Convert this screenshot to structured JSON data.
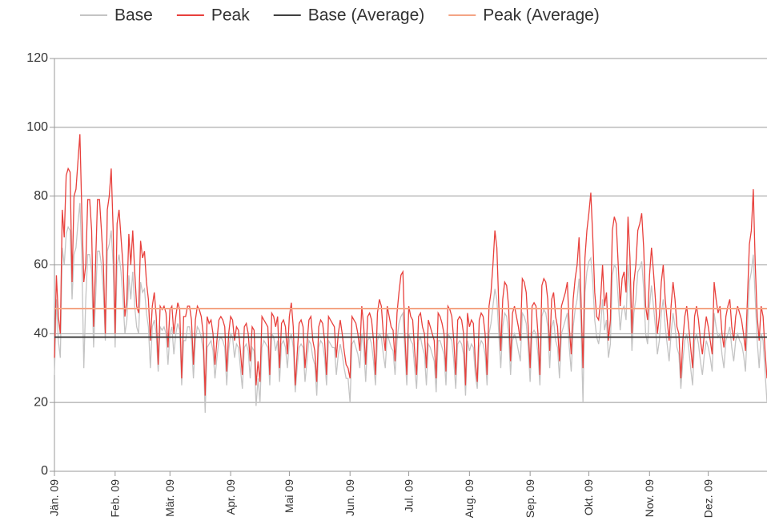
{
  "chart_data": {
    "type": "line",
    "categories": [
      "Jän. 09",
      "Feb. 09",
      "Mär. 09",
      "Apr. 09",
      "Mai 09",
      "Jun. 09",
      "Jul. 09",
      "Aug. 09",
      "Sep. 09",
      "Okt. 09",
      "Nov. 09",
      "Dez. 09"
    ],
    "ylim": [
      0,
      120
    ],
    "yticks": [
      0,
      20,
      40,
      60,
      80,
      100,
      120
    ],
    "grid": true,
    "legend": "top",
    "series": [
      {
        "name": "Base",
        "color": "#c4c4c4",
        "values": [
          [
            28,
            50,
            38,
            33,
            65,
            60,
            69,
            71,
            70,
            50,
            63,
            65,
            72,
            78,
            62,
            30,
            50,
            63,
            63,
            58,
            36,
            50,
            64,
            64,
            60,
            52,
            38,
            64,
            66,
            70,
            60
          ],
          [
            36,
            60,
            63,
            58,
            50,
            40,
            44,
            57,
            50,
            58,
            48,
            42,
            40,
            55,
            52,
            53,
            46,
            42,
            30,
            42,
            44,
            40,
            29,
            42,
            41,
            42,
            40,
            31
          ],
          [
            40,
            42,
            34,
            40,
            43,
            41,
            25,
            38,
            38,
            42,
            42,
            38,
            27,
            38,
            42,
            41,
            39,
            35,
            17,
            36,
            37,
            38,
            35,
            27,
            33,
            38,
            39,
            38,
            36,
            25,
            35
          ],
          [
            40,
            39,
            33,
            37,
            36,
            30,
            24,
            36,
            37,
            35,
            27,
            36,
            35,
            19,
            27,
            20,
            36,
            38,
            37,
            36,
            25,
            40,
            39,
            35,
            38,
            26,
            37,
            38,
            36,
            30
          ],
          [
            38,
            40,
            36,
            23,
            30,
            36,
            37,
            36,
            26,
            32,
            38,
            37,
            33,
            31,
            22,
            36,
            38,
            37,
            33,
            25,
            38,
            37,
            36,
            36,
            28,
            34,
            37,
            34,
            30,
            27,
            27
          ],
          [
            20,
            37,
            38,
            36,
            34,
            30,
            40,
            36,
            26,
            38,
            39,
            37,
            32,
            25,
            38,
            40,
            39,
            34,
            30,
            40,
            38,
            36,
            35,
            28,
            38,
            43,
            45,
            46,
            35,
            25
          ],
          [
            40,
            38,
            37,
            30,
            24,
            38,
            39,
            36,
            34,
            25,
            37,
            36,
            34,
            32,
            23,
            38,
            38,
            36,
            34,
            25,
            40,
            39,
            38,
            32,
            24,
            37,
            38,
            37,
            34,
            22,
            38
          ],
          [
            35,
            37,
            36,
            28,
            24,
            36,
            38,
            37,
            34,
            25,
            40,
            43,
            48,
            53,
            50,
            40,
            30,
            42,
            46,
            45,
            40,
            28,
            38,
            40,
            38,
            35,
            32,
            46,
            45,
            43,
            36
          ],
          [
            26,
            40,
            41,
            40,
            34,
            25,
            45,
            47,
            46,
            42,
            30,
            42,
            44,
            38,
            36,
            27,
            40,
            42,
            44,
            46,
            36,
            29,
            42,
            47,
            50,
            56,
            42,
            20,
            52,
            58
          ],
          [
            61,
            62,
            55,
            44,
            39,
            37,
            42,
            50,
            41,
            44,
            33,
            37,
            57,
            60,
            59,
            50,
            41,
            47,
            48,
            44,
            60,
            52,
            35,
            46,
            50,
            58,
            59,
            61,
            53,
            40,
            37
          ],
          [
            48,
            54,
            48,
            42,
            34,
            38,
            46,
            50,
            42,
            37,
            32,
            40,
            46,
            42,
            36,
            34,
            24,
            32,
            38,
            40,
            36,
            30,
            25,
            38,
            40,
            37,
            32,
            28,
            34,
            38
          ],
          [
            36,
            33,
            29,
            46,
            42,
            39,
            40,
            34,
            30,
            38,
            40,
            42,
            36,
            32,
            38,
            40,
            38,
            37,
            34,
            29,
            42,
            55,
            58,
            63,
            50,
            38,
            30,
            40,
            38,
            29,
            20
          ]
        ]
      },
      {
        "name": "Peak",
        "color": "#e8403c",
        "values": [
          [
            33,
            57,
            45,
            40,
            76,
            68,
            86,
            88,
            87,
            55,
            80,
            82,
            90,
            98,
            75,
            55,
            60,
            79,
            79,
            70,
            42,
            60,
            79,
            79,
            70,
            60,
            40,
            76,
            80,
            88,
            70
          ],
          [
            40,
            72,
            76,
            68,
            60,
            45,
            50,
            69,
            60,
            70,
            58,
            48,
            46,
            67,
            62,
            64,
            55,
            50,
            38,
            48,
            52,
            45,
            31,
            48,
            47,
            48,
            46,
            36
          ],
          [
            47,
            48,
            40,
            45,
            49,
            47,
            27,
            45,
            45,
            48,
            48,
            44,
            31,
            44,
            48,
            47,
            45,
            40,
            22,
            45,
            43,
            44,
            40,
            31,
            38,
            44,
            45,
            44,
            42,
            29,
            40
          ],
          [
            45,
            44,
            38,
            42,
            41,
            35,
            28,
            42,
            43,
            40,
            32,
            42,
            41,
            25,
            32,
            26,
            45,
            44,
            43,
            42,
            28,
            46,
            45,
            42,
            45,
            30,
            43,
            44,
            42,
            34
          ],
          [
            45,
            49,
            42,
            25,
            34,
            43,
            44,
            42,
            30,
            37,
            44,
            45,
            38,
            35,
            26,
            42,
            44,
            43,
            38,
            28,
            45,
            44,
            43,
            42,
            33,
            40,
            44,
            40,
            35,
            31,
            30
          ],
          [
            27,
            45,
            44,
            43,
            40,
            35,
            48,
            42,
            31,
            45,
            46,
            44,
            38,
            28,
            46,
            50,
            48,
            40,
            35,
            48,
            45,
            42,
            41,
            32,
            46,
            52,
            57,
            58,
            40,
            28
          ],
          [
            48,
            45,
            44,
            35,
            28,
            45,
            46,
            42,
            40,
            30,
            44,
            42,
            40,
            38,
            27,
            46,
            45,
            43,
            40,
            29,
            48,
            47,
            45,
            38,
            28,
            44,
            45,
            44,
            40,
            25,
            46
          ],
          [
            42,
            44,
            43,
            32,
            26,
            44,
            46,
            45,
            40,
            28,
            48,
            52,
            60,
            70,
            65,
            48,
            35,
            50,
            55,
            54,
            48,
            32,
            46,
            48,
            45,
            42,
            38,
            56,
            55,
            52,
            42
          ],
          [
            30,
            48,
            49,
            48,
            40,
            28,
            54,
            56,
            55,
            50,
            35,
            50,
            52,
            45,
            42,
            32,
            48,
            50,
            52,
            55,
            42,
            34,
            50,
            56,
            60,
            68,
            50,
            30,
            62,
            70
          ],
          [
            75,
            81,
            68,
            52,
            45,
            44,
            50,
            60,
            48,
            52,
            38,
            44,
            70,
            74,
            72,
            60,
            48,
            56,
            58,
            52,
            74,
            62,
            40,
            55,
            60,
            70,
            72,
            75,
            65,
            48,
            44
          ],
          [
            57,
            65,
            58,
            50,
            40,
            45,
            55,
            60,
            50,
            44,
            38,
            48,
            55,
            50,
            42,
            40,
            27,
            38,
            45,
            48,
            42,
            36,
            30,
            45,
            48,
            44,
            38,
            34,
            40,
            45
          ],
          [
            42,
            38,
            34,
            55,
            50,
            46,
            48,
            40,
            36,
            45,
            48,
            50,
            42,
            38,
            45,
            48,
            46,
            44,
            40,
            35,
            50,
            66,
            70,
            82,
            60,
            45,
            38,
            48,
            45,
            35,
            27
          ]
        ]
      },
      {
        "name": "Base (Average)",
        "color": "#404040",
        "value": 39
      },
      {
        "name": "Peak (Average)",
        "color": "#f4a484",
        "value": 47.3
      }
    ]
  }
}
